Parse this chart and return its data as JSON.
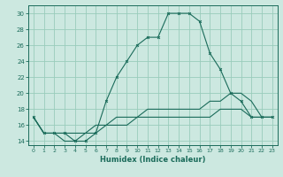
{
  "xlabel": "Humidex (Indice chaleur)",
  "xlim": [
    -0.5,
    23.5
  ],
  "ylim": [
    13.5,
    31
  ],
  "yticks": [
    14,
    16,
    18,
    20,
    22,
    24,
    26,
    28,
    30
  ],
  "xticks": [
    0,
    1,
    2,
    3,
    4,
    5,
    6,
    7,
    8,
    9,
    10,
    11,
    12,
    13,
    14,
    15,
    16,
    17,
    18,
    19,
    20,
    21,
    22,
    23
  ],
  "background_color": "#cce8e0",
  "grid_color": "#99ccbb",
  "line_color": "#1a6b5a",
  "line1_x": [
    0,
    1,
    2,
    3,
    4,
    5,
    6,
    7,
    8,
    9,
    10,
    11,
    12,
    13,
    14,
    15,
    16,
    17,
    18,
    19,
    20,
    21,
    22,
    23
  ],
  "line1_y": [
    17,
    15,
    15,
    15,
    14,
    14,
    15,
    19,
    22,
    24,
    26,
    27,
    27,
    30,
    30,
    30,
    29,
    25,
    23,
    20,
    19,
    17,
    17,
    17
  ],
  "line2_x": [
    0,
    1,
    2,
    3,
    4,
    5,
    6,
    7,
    8,
    9,
    10,
    11,
    12,
    13,
    14,
    15,
    16,
    17,
    18,
    19,
    20,
    21,
    22,
    23
  ],
  "line2_y": [
    17,
    15,
    15,
    14,
    14,
    15,
    16,
    16,
    17,
    17,
    17,
    18,
    18,
    18,
    18,
    18,
    18,
    19,
    19,
    20,
    20,
    19,
    17,
    17
  ],
  "line3_x": [
    0,
    1,
    2,
    3,
    4,
    5,
    6,
    7,
    8,
    9,
    10,
    11,
    12,
    13,
    14,
    15,
    16,
    17,
    18,
    19,
    20,
    21,
    22,
    23
  ],
  "line3_y": [
    17,
    15,
    15,
    15,
    15,
    15,
    15,
    16,
    16,
    16,
    17,
    17,
    17,
    17,
    17,
    17,
    17,
    17,
    18,
    18,
    18,
    17,
    17,
    17
  ]
}
